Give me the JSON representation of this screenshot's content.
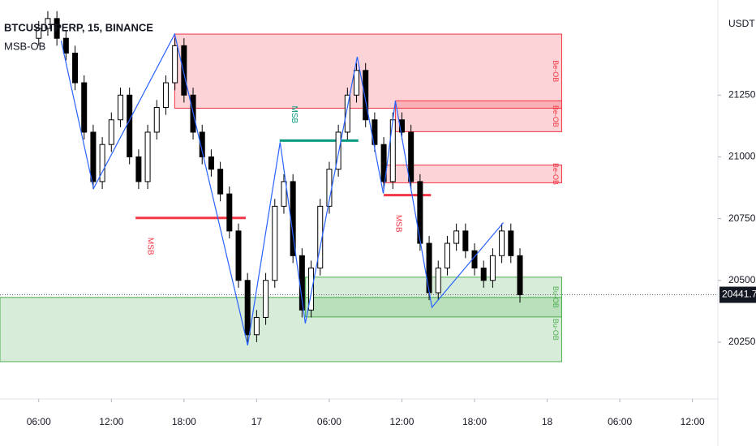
{
  "chart_data": {
    "type": "candlestick",
    "title": "BTCUSDTPERP, 15, BINANCE",
    "subtitle": "MSB-OB",
    "y_axis_label": "USDT",
    "xlim": [
      2.8,
      62.1
    ],
    "xticks": [
      {
        "value": 6,
        "label": "06:00"
      },
      {
        "value": 12,
        "label": "12:00"
      },
      {
        "value": 18,
        "label": "18:00"
      },
      {
        "value": 24,
        "label": "17"
      },
      {
        "value": 30,
        "label": "06:00"
      },
      {
        "value": 36,
        "label": "12:00"
      },
      {
        "value": 42,
        "label": "18:00"
      },
      {
        "value": 48,
        "label": "18"
      },
      {
        "value": 54,
        "label": "06:00"
      },
      {
        "value": 60,
        "label": "12:00"
      }
    ],
    "ylim": [
      20020,
      21635
    ],
    "yticks": [
      {
        "value": 20250,
        "label": "20250.0"
      },
      {
        "value": 20500,
        "label": "20500.0"
      },
      {
        "value": 20750,
        "label": "20750.0"
      },
      {
        "value": 21000,
        "label": "21000.0"
      },
      {
        "value": 21250,
        "label": "21250.0"
      }
    ],
    "last_price": {
      "value": 20441.7,
      "label": "20441.7"
    },
    "candles": {
      "up_color": "#ffffff",
      "down_color": "#000000",
      "x": [
        6,
        6.75,
        7.5,
        8.25,
        9,
        9.75,
        10.5,
        11.25,
        12,
        12.75,
        13.5,
        14.25,
        15,
        15.75,
        16.5,
        17.25,
        18,
        18.75,
        19.5,
        20.25,
        21,
        21.75,
        22.5,
        23.25,
        24,
        24.75,
        25.5,
        26.25,
        27,
        27.75,
        28.5,
        29.25,
        30,
        30.75,
        31.5,
        32.25,
        33,
        33.75,
        34.5,
        35.25,
        36,
        36.75,
        37.5,
        38.25,
        39,
        39.75,
        40.5,
        41.25,
        42,
        42.75,
        43.5,
        44.25,
        45,
        45.75
      ],
      "open": [
        21480,
        21520,
        21560,
        21480,
        21420,
        21300,
        21100,
        20900,
        21050,
        21150,
        21250,
        21000,
        20900,
        21100,
        21200,
        21300,
        21450,
        21250,
        21100,
        21000,
        20950,
        20850,
        20700,
        20500,
        20280,
        20350,
        20500,
        20800,
        20900,
        20600,
        20380,
        20550,
        20800,
        20950,
        21100,
        21250,
        21350,
        21150,
        21050,
        20900,
        21150,
        21100,
        20900,
        20650,
        20450,
        20550,
        20650,
        20700,
        20620,
        20550,
        20500,
        20600,
        20700,
        20600
      ],
      "high": [
        21550,
        21590,
        21590,
        21510,
        21450,
        21330,
        21130,
        21080,
        21180,
        21280,
        21280,
        21030,
        21130,
        21230,
        21330,
        21480,
        21480,
        21280,
        21130,
        21030,
        20980,
        20880,
        20730,
        20530,
        20380,
        20530,
        20830,
        20930,
        20930,
        20630,
        20580,
        20830,
        20980,
        21130,
        21280,
        21380,
        21380,
        21180,
        21080,
        21180,
        21180,
        21130,
        20930,
        20680,
        20580,
        20680,
        20730,
        20730,
        20650,
        20580,
        20630,
        20730,
        20730,
        20630
      ],
      "low": [
        21450,
        21490,
        21450,
        21390,
        21270,
        21070,
        20870,
        20870,
        21020,
        21120,
        20970,
        20870,
        20870,
        21070,
        21170,
        21270,
        21220,
        21070,
        20970,
        20920,
        20820,
        20670,
        20470,
        20250,
        20250,
        20320,
        20470,
        20770,
        20570,
        20350,
        20350,
        20520,
        20770,
        20920,
        21070,
        21220,
        21120,
        21020,
        20870,
        20870,
        21070,
        20870,
        20620,
        20420,
        20420,
        20520,
        20620,
        20590,
        20520,
        20470,
        20470,
        20570,
        20570,
        20410
      ],
      "close": [
        21520,
        21560,
        21480,
        21420,
        21300,
        21100,
        20900,
        21050,
        21150,
        21250,
        21000,
        20900,
        21100,
        21200,
        21300,
        21450,
        21250,
        21100,
        21000,
        20950,
        20850,
        20700,
        20500,
        20280,
        20350,
        20500,
        20800,
        20900,
        20600,
        20380,
        20550,
        20800,
        20950,
        21100,
        21250,
        21350,
        21150,
        21050,
        20900,
        21150,
        21100,
        20900,
        20650,
        20450,
        20550,
        20650,
        20700,
        20620,
        20550,
        20500,
        20600,
        20700,
        20600,
        20441.7
      ]
    },
    "zigzag": {
      "color": "#2962ff",
      "x": [
        7.85,
        10.53,
        17.23,
        23.26,
        25.94,
        28.02,
        32.31,
        34.46,
        35.46,
        38.48,
        44.38
      ],
      "y": [
        21470,
        20872,
        21497,
        20237,
        21059,
        20326,
        21405,
        20852,
        21227,
        20391,
        20734
      ]
    },
    "zones": [
      {
        "label": "Be-OB",
        "color": "#f23645",
        "x0": 17.23,
        "x1": 49.2,
        "y0": 21197,
        "y1": 21497
      },
      {
        "label": "Be-OB",
        "color": "#f23645",
        "x0": 35.46,
        "x1": 49.2,
        "y0": 21102,
        "y1": 21227
      },
      {
        "label": "Be-OB",
        "color": "#f23645",
        "x0": 34.46,
        "x1": 49.2,
        "y0": 20895,
        "y1": 20967
      },
      {
        "label": "Bu-OB",
        "color": "#4caf50",
        "x0": 28.02,
        "x1": 49.2,
        "y0": 20352,
        "y1": 20513
      },
      {
        "label": "Bu-OB",
        "color": "#4caf50",
        "x0": 2.8,
        "x1": 49.2,
        "y0": 20171,
        "y1": 20431
      }
    ],
    "msb": [
      {
        "label": "MSB",
        "color": "#f23645",
        "x0": 14.0,
        "x1": 23.1,
        "price": 20753
      },
      {
        "label": "MSB",
        "color": "#089981",
        "x0": 25.9,
        "x1": 32.4,
        "price": 21066
      },
      {
        "label": "MSB",
        "color": "#f23645",
        "x0": 34.5,
        "x1": 38.4,
        "price": 20845
      }
    ]
  }
}
